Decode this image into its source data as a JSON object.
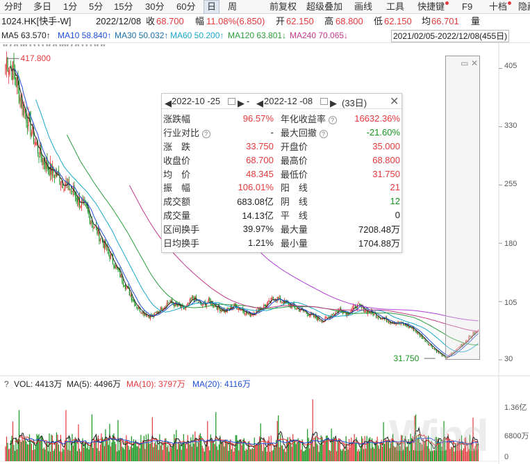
{
  "toolbar": {
    "items": [
      "分时",
      "多日",
      "1分",
      "5分",
      "15分",
      "30分",
      "60分",
      "日",
      "周",
      "前复权",
      "超级叠加",
      "画线",
      "工具",
      "快捷键",
      "F9",
      "十档",
      "隐藏"
    ],
    "active": "日"
  },
  "quote": {
    "symbol": "1024.HK[快手-W]",
    "date": "2022/12/08",
    "close_label": "收",
    "close": "68.700",
    "change_label": "幅",
    "change": "11.08%(6.850)",
    "open_label": "开",
    "open": "62.150",
    "high_label": "高",
    "high": "68.800",
    "low_label": "低",
    "low": "62.150",
    "avg_label": "均",
    "avg": "66.701",
    "vol_label": "量"
  },
  "ma": {
    "ma5": "MA5  63.570↑",
    "ma10": "MA10  58.840↑",
    "ma30": "MA30  50.032↑",
    "ma60": "MA60  50.200↑",
    "ma120": "MA120  63.801↓",
    "ma240": "MA240  70.065↓",
    "range": "2021/02/05-2022/12/08(455日)"
  },
  "colors": {
    "up": "#e4393c",
    "down": "#16941e",
    "ma5": "#222222",
    "ma10": "#1f4fd6",
    "ma30": "#1aa7c9",
    "ma60": "#2a9d3a",
    "ma120": "#c03a8a",
    "ma240": "#c03a8a"
  },
  "axis": {
    "price_ticks": [
      "405",
      "330",
      "255",
      "180",
      "105",
      "30"
    ],
    "vol_ticks": [
      "1.36亿",
      "6800万",
      "0"
    ],
    "high_marker": "417.800",
    "low_marker": "31.750"
  },
  "stars": "**  *  **  ***    *        *     *         *  **  **  ****    *   **   *  *  *     **  **",
  "popup": {
    "start_date": "2022-10 -25",
    "dash": "-",
    "end_date": "2022-12 -08",
    "days": "(33日)",
    "rows": [
      {
        "k1": "涨跌幅",
        "v1": "96.57%",
        "c1": "red",
        "k2": "年化收益率",
        "v2": "16632.36%",
        "c2": "red"
      },
      {
        "k1": "行业对比",
        "v1": "-",
        "c1": "dark",
        "k2": "最大回撤",
        "v2": "-21.60%",
        "c2": "green"
      },
      {
        "k1": "涨　跌",
        "v1": "33.750",
        "c1": "red",
        "k2": "开盘价",
        "v2": "35.000",
        "c2": "red"
      },
      {
        "k1": "收盘价",
        "v1": "68.700",
        "c1": "red",
        "k2": "最高价",
        "v2": "68.800",
        "c2": "red"
      },
      {
        "k1": "均　价",
        "v1": "48.345",
        "c1": "red",
        "k2": "最低价",
        "v2": "31.750",
        "c2": "red"
      },
      {
        "k1": "振　幅",
        "v1": "106.01%",
        "c1": "red",
        "k2": "阳　线",
        "v2": "21",
        "c2": "red"
      },
      {
        "k1": "成交额",
        "v1": "683.08亿",
        "c1": "dark",
        "k2": "阴　线",
        "v2": "12",
        "c2": "green"
      },
      {
        "k1": "成交量",
        "v1": "14.13亿",
        "c1": "dark",
        "k2": "平　线",
        "v2": "0",
        "c2": "dark"
      },
      {
        "k1": "区间换手",
        "v1": "39.97%",
        "c1": "dark",
        "k2": "最大量",
        "v2": "7208.48万",
        "c2": "dark"
      },
      {
        "k1": "日均换手",
        "v1": "1.21%",
        "c1": "dark",
        "k2": "最小量",
        "v2": "1704.88万",
        "c2": "dark"
      }
    ]
  },
  "volume": {
    "vol": "VOL: 4413万",
    "ma5": "MA(5): 4496万",
    "ma10": "MA(10): 3797万",
    "ma20": "MA(20): 4116万",
    "help": "?"
  },
  "watermark": "Wind",
  "chart_data": {
    "type": "candlestick",
    "price_ticks": [
      405,
      330,
      255,
      180,
      105,
      30
    ],
    "ylim": [
      30,
      418
    ],
    "marked_high": 417.8,
    "marked_low": 31.75,
    "close_path": [
      418,
      400,
      360,
      330,
      300,
      280,
      270,
      260,
      250,
      235,
      220,
      200,
      180,
      160,
      140,
      120,
      100,
      90,
      85,
      95,
      105,
      100,
      95,
      110,
      100,
      105,
      98,
      92,
      100,
      95,
      88,
      95,
      100,
      110,
      105,
      100,
      95,
      90,
      85,
      80,
      88,
      95,
      90,
      100,
      95,
      90,
      85,
      80,
      78,
      75,
      70,
      60,
      50,
      40,
      32,
      40,
      50,
      60,
      68.7
    ],
    "volume_ticks": [
      "0",
      "6800万",
      "1.36亿"
    ]
  }
}
